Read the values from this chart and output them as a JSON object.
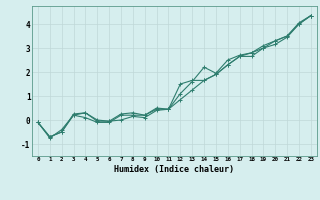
{
  "x": [
    0,
    1,
    2,
    3,
    4,
    5,
    6,
    7,
    8,
    9,
    10,
    11,
    12,
    13,
    14,
    15,
    16,
    17,
    18,
    19,
    20,
    21,
    22,
    23
  ],
  "line1": [
    -0.1,
    -0.7,
    -0.5,
    0.2,
    0.1,
    -0.1,
    -0.1,
    0.2,
    0.2,
    0.2,
    0.45,
    0.45,
    0.85,
    1.25,
    1.65,
    1.9,
    2.3,
    2.65,
    2.65,
    3.0,
    3.15,
    3.45,
    4.0,
    4.35
  ],
  "line2": [
    -0.1,
    -0.7,
    -0.5,
    0.25,
    0.3,
    0.0,
    -0.05,
    0.0,
    0.15,
    0.1,
    0.4,
    0.45,
    1.1,
    1.6,
    2.2,
    1.95,
    2.5,
    2.7,
    2.8,
    3.1,
    3.3,
    3.5,
    4.0,
    4.35
  ],
  "line3": [
    -0.1,
    -0.75,
    -0.4,
    0.2,
    0.3,
    -0.05,
    -0.05,
    0.25,
    0.3,
    0.2,
    0.5,
    0.45,
    1.5,
    1.65,
    1.65,
    1.9,
    2.3,
    2.65,
    2.8,
    3.0,
    3.3,
    3.5,
    4.05,
    4.35
  ],
  "line_color": "#2e7d6e",
  "bg_color": "#d6eeee",
  "grid_color": "#c0d8d8",
  "xlabel": "Humidex (Indice chaleur)",
  "xlim": [
    -0.5,
    23.5
  ],
  "ylim": [
    -1.5,
    4.75
  ],
  "yticks": [
    -1,
    0,
    1,
    2,
    3,
    4
  ],
  "xticks": [
    0,
    1,
    2,
    3,
    4,
    5,
    6,
    7,
    8,
    9,
    10,
    11,
    12,
    13,
    14,
    15,
    16,
    17,
    18,
    19,
    20,
    21,
    22,
    23
  ]
}
